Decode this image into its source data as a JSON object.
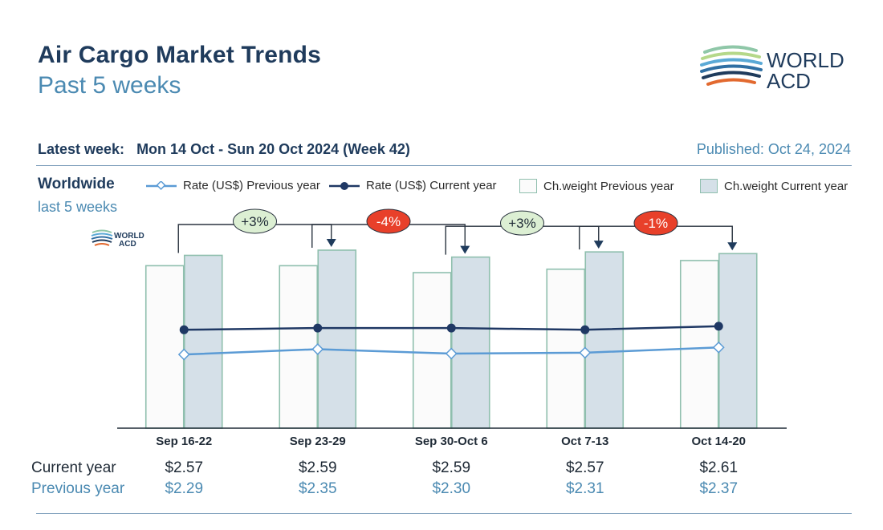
{
  "header": {
    "title": "Air Cargo Market Trends",
    "subtitle": "Past 5 weeks",
    "logo_text_line1": "WORLD",
    "logo_text_line2": "ACD"
  },
  "info": {
    "latest_week_label": "Latest week:",
    "latest_week_value": "Mon 14 Oct - Sun 20 Oct 2024 (Week 42)",
    "published": "Published: Oct 24, 2024",
    "region": "Worldwide",
    "period": "last 5 weeks"
  },
  "legend": {
    "rate_prev": "Rate (US$) Previous year",
    "rate_cur": "Rate (US$) Current year",
    "weight_prev": "Ch.weight Previous year",
    "weight_cur": "Ch.weight Current year"
  },
  "table": {
    "current_label": "Current year",
    "previous_label": "Previous year"
  },
  "colors": {
    "navy": "#1f3b5c",
    "accent_blue": "#4b8ab2",
    "rate_prev_line": "#5b9bd5",
    "rate_cur_line": "#1f3864",
    "bar_prev_fill": "#fbfbfb",
    "bar_cur_fill": "#d5e0e8",
    "bar_border": "#8fbfae",
    "badge_up": "#dcefd3",
    "badge_down": "#e8402a"
  },
  "chart_data": {
    "type": "bar",
    "categories": [
      "Sep 16-22",
      "Sep 23-29",
      "Sep 30-Oct 6",
      "Oct 7-13",
      "Oct 14-20"
    ],
    "series": [
      {
        "name": "Ch.weight Previous year",
        "type": "bar",
        "values": [
          94,
          94,
          90,
          92,
          97
        ]
      },
      {
        "name": "Ch.weight Current year",
        "type": "bar",
        "values": [
          100,
          103,
          99,
          102,
          101
        ]
      },
      {
        "name": "Rate (US$) Previous year",
        "type": "line",
        "values": [
          2.29,
          2.35,
          2.3,
          2.31,
          2.37
        ],
        "labels": [
          "$2.29",
          "$2.35",
          "$2.30",
          "$2.31",
          "$2.37"
        ]
      },
      {
        "name": "Rate (US$) Current year",
        "type": "line",
        "values": [
          2.57,
          2.59,
          2.59,
          2.57,
          2.61
        ],
        "labels": [
          "$2.57",
          "$2.59",
          "$2.59",
          "$2.57",
          "$2.61"
        ]
      }
    ],
    "week_changes": [
      {
        "from": "Sep 16-22",
        "to": "Sep 23-29",
        "label": "+3%",
        "direction": "up"
      },
      {
        "from": "Sep 23-29",
        "to": "Sep 30-Oct 6",
        "label": "-4%",
        "direction": "down"
      },
      {
        "from": "Sep 30-Oct 6",
        "to": "Oct 7-13",
        "label": "+3%",
        "direction": "up"
      },
      {
        "from": "Oct 7-13",
        "to": "Oct 14-20",
        "label": "-1%",
        "direction": "down"
      }
    ]
  }
}
